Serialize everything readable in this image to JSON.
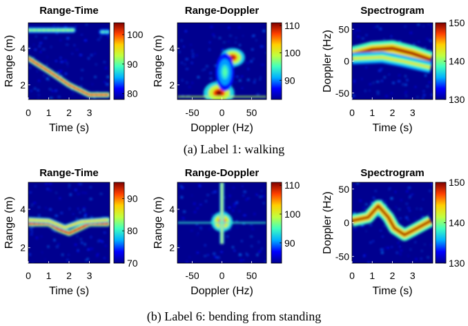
{
  "captions": {
    "a": "(a) Label 1: walking",
    "b": "(b) Label 6: bending from standing"
  },
  "colormap": [
    "#00008f",
    "#0000ff",
    "#00b0ff",
    "#40ffbf",
    "#c0ff40",
    "#ffd000",
    "#ff4000",
    "#800000"
  ],
  "chart_data": [
    {
      "type": "heatmap",
      "row": "a",
      "title": "Range-Time",
      "xlabel": "Time (s)",
      "ylabel": "Range (m)",
      "xlim": [
        0,
        4
      ],
      "ylim": [
        1.2,
        5.4
      ],
      "x_ticks": [
        0,
        1,
        2,
        3
      ],
      "y_ticks": [
        2,
        4
      ],
      "colorbar_range": [
        78,
        104
      ],
      "colorbar_ticks": [
        80,
        90,
        100
      ],
      "features": [
        {
          "kind": "track",
          "points": [
            [
              0.0,
              3.45
            ],
            [
              1.0,
              2.75
            ],
            [
              2.0,
              2.0
            ],
            [
              3.0,
              1.45
            ],
            [
              3.9,
              1.45
            ]
          ],
          "intensity": 0.8
        },
        {
          "kind": "track",
          "points": [
            [
              0.0,
              5.0
            ],
            [
              2.2,
              5.0
            ]
          ],
          "intensity": 0.45
        },
        {
          "kind": "track",
          "points": [
            [
              3.6,
              4.9
            ],
            [
              3.9,
              4.9
            ]
          ],
          "intensity": 0.35
        }
      ]
    },
    {
      "type": "heatmap",
      "row": "a",
      "title": "Range-Doppler",
      "xlabel": "Doppler (Hz)",
      "ylabel": "Range (m)",
      "xlim": [
        -75,
        75
      ],
      "ylim": [
        1.2,
        5.4
      ],
      "x_ticks": [
        -50,
        0,
        50
      ],
      "y_ticks": [
        2,
        4
      ],
      "colorbar_range": [
        83,
        111
      ],
      "colorbar_ticks": [
        90,
        100,
        110
      ],
      "features": [
        {
          "kind": "blob",
          "x": -5,
          "y": 1.55,
          "rx": 10,
          "ry": 0.25,
          "intensity": 1.0
        },
        {
          "kind": "blob",
          "x": 18,
          "y": 3.5,
          "rx": 8,
          "ry": 0.2,
          "intensity": 0.95
        },
        {
          "kind": "blob",
          "x": 5,
          "y": 2.7,
          "rx": 6,
          "ry": 0.4,
          "intensity": 0.45
        },
        {
          "kind": "line",
          "y": 1.35,
          "intensity": 0.55
        }
      ]
    },
    {
      "type": "heatmap",
      "row": "a",
      "title": "Spectrogram",
      "xlabel": "Time (s)",
      "ylabel": "Doppler (Hz)",
      "xlim": [
        0,
        4
      ],
      "ylim": [
        -60,
        60
      ],
      "x_ticks": [
        0,
        1,
        2,
        3
      ],
      "y_ticks": [
        -50,
        0,
        50
      ],
      "colorbar_range": [
        130,
        150
      ],
      "colorbar_ticks": [
        130,
        140,
        150
      ],
      "features": [
        {
          "kind": "band",
          "points": [
            [
              0.0,
              10
            ],
            [
              1.0,
              18
            ],
            [
              2.0,
              20
            ],
            [
              3.0,
              12
            ],
            [
              3.9,
              2
            ]
          ],
          "width": 14,
          "intensity": 0.85
        },
        {
          "kind": "band",
          "points": [
            [
              0.0,
              4
            ],
            [
              1.5,
              6
            ],
            [
              2.5,
              0
            ],
            [
              3.9,
              -10
            ]
          ],
          "width": 10,
          "intensity": 0.55
        }
      ]
    },
    {
      "type": "heatmap",
      "row": "b",
      "title": "Range-Time",
      "xlabel": "Time (s)",
      "ylabel": "Range (m)",
      "xlim": [
        0,
        4
      ],
      "ylim": [
        1.2,
        5.4
      ],
      "x_ticks": [
        0,
        1,
        2,
        3
      ],
      "y_ticks": [
        2,
        4
      ],
      "colorbar_range": [
        70,
        95
      ],
      "colorbar_ticks": [
        70,
        80,
        90
      ],
      "features": [
        {
          "kind": "track",
          "points": [
            [
              0.0,
              3.25
            ],
            [
              1.0,
              3.25
            ],
            [
              1.5,
              2.95
            ],
            [
              2.0,
              2.75
            ],
            [
              2.5,
              3.0
            ],
            [
              3.0,
              3.25
            ],
            [
              3.9,
              3.25
            ]
          ],
          "intensity": 0.85
        },
        {
          "kind": "track",
          "points": [
            [
              0.0,
              3.45
            ],
            [
              1.0,
              3.4
            ],
            [
              1.8,
              3.05
            ],
            [
              2.6,
              3.35
            ],
            [
              3.9,
              3.45
            ]
          ],
          "intensity": 0.6
        }
      ]
    },
    {
      "type": "heatmap",
      "row": "b",
      "title": "Range-Doppler",
      "xlabel": "Doppler (Hz)",
      "ylabel": "Range (m)",
      "xlim": [
        -75,
        75
      ],
      "ylim": [
        1.2,
        5.4
      ],
      "x_ticks": [
        -50,
        0,
        50
      ],
      "y_ticks": [
        2,
        4
      ],
      "colorbar_range": [
        83,
        111
      ],
      "colorbar_ticks": [
        90,
        100,
        110
      ],
      "features": [
        {
          "kind": "blob",
          "x": 0,
          "y": 3.35,
          "rx": 7,
          "ry": 0.2,
          "intensity": 1.0
        },
        {
          "kind": "vline",
          "x": 0,
          "y0": 2.2,
          "y1": 5.4,
          "intensity": 0.6
        },
        {
          "kind": "line",
          "y": 3.3,
          "intensity": 0.4
        }
      ]
    },
    {
      "type": "heatmap",
      "row": "b",
      "title": "Spectrogram",
      "xlabel": "Time (s)",
      "ylabel": "Doppler (Hz)",
      "xlim": [
        0,
        4
      ],
      "ylim": [
        -60,
        60
      ],
      "x_ticks": [
        0,
        1,
        2,
        3
      ],
      "y_ticks": [
        -50,
        0,
        50
      ],
      "colorbar_range": [
        130,
        150
      ],
      "colorbar_ticks": [
        130,
        140,
        150
      ],
      "features": [
        {
          "kind": "band",
          "points": [
            [
              0.0,
              3
            ],
            [
              0.8,
              8
            ],
            [
              1.3,
              25
            ],
            [
              1.8,
              8
            ],
            [
              2.1,
              -8
            ],
            [
              2.6,
              -18
            ],
            [
              3.1,
              -10
            ],
            [
              3.9,
              3
            ]
          ],
          "width": 10,
          "intensity": 0.85
        }
      ]
    }
  ]
}
